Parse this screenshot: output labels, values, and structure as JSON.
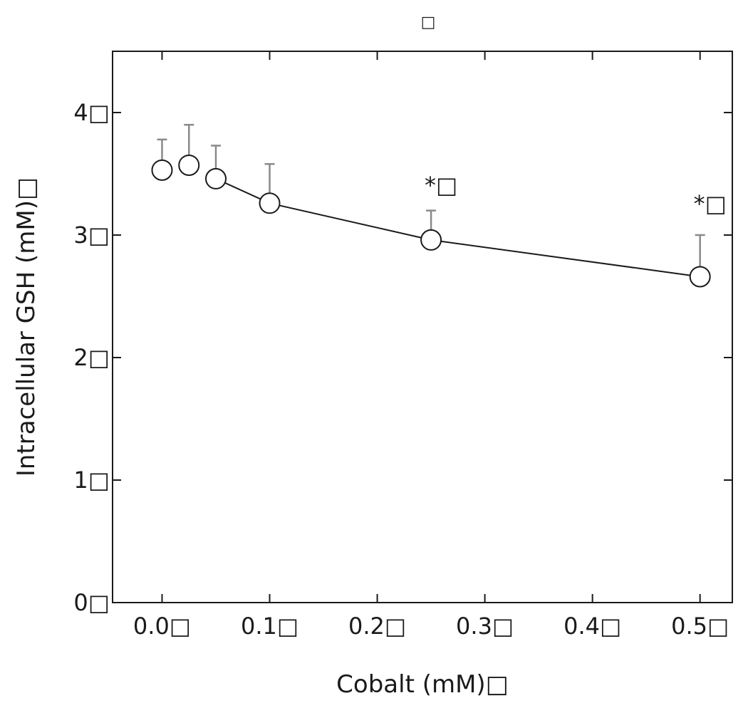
{
  "chart_data": {
    "type": "scatter",
    "top_caption": "□",
    "title": "",
    "xlabel": "Cobalt (mM)□",
    "ylabel": "Intracellular GSH (mM)□",
    "xlim": [
      -0.046,
      0.53
    ],
    "ylim": [
      0,
      4.5
    ],
    "x_ticks": [
      {
        "value": 0.0,
        "label": "0.0□"
      },
      {
        "value": 0.1,
        "label": "0.1□"
      },
      {
        "value": 0.2,
        "label": "0.2□"
      },
      {
        "value": 0.3,
        "label": "0.3□"
      },
      {
        "value": 0.4,
        "label": "0.4□"
      },
      {
        "value": 0.5,
        "label": "0.5□"
      }
    ],
    "y_ticks": [
      {
        "value": 0,
        "label": "0□"
      },
      {
        "value": 1,
        "label": "1□"
      },
      {
        "value": 2,
        "label": "2□"
      },
      {
        "value": 3,
        "label": "3□"
      },
      {
        "value": 4,
        "label": "4□"
      }
    ],
    "grid": false,
    "series": [
      {
        "marker": "open-circle",
        "points": [
          {
            "x": 0.0,
            "y": 3.53,
            "err": 0.25
          },
          {
            "x": 0.025,
            "y": 3.57,
            "err": 0.33
          },
          {
            "x": 0.05,
            "y": 3.46,
            "err": 0.27
          },
          {
            "x": 0.1,
            "y": 3.26,
            "err": 0.32
          },
          {
            "x": 0.25,
            "y": 2.96,
            "err": 0.24
          },
          {
            "x": 0.5,
            "y": 2.66,
            "err": 0.34
          }
        ],
        "line_from_index": 2,
        "line_color": "#1a1a1a",
        "errorbar_color": "#8a8a8a"
      }
    ],
    "annotations": [
      {
        "x": 0.25,
        "y": 3.4,
        "text": "*□"
      },
      {
        "x": 0.5,
        "y": 3.25,
        "text": "*□"
      }
    ]
  }
}
